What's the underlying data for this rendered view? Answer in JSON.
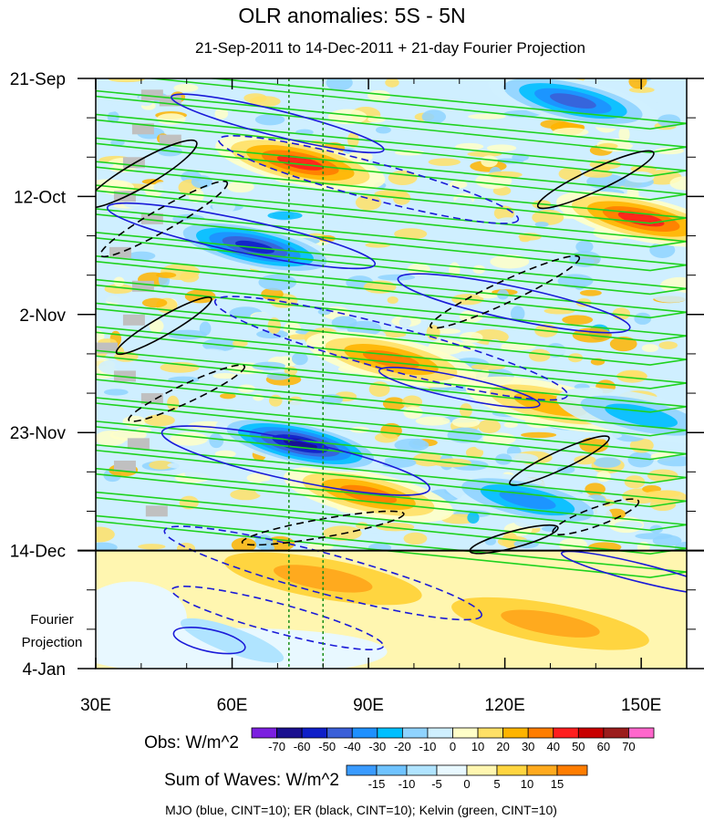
{
  "chart_data": {
    "type": "heatmap",
    "title": "OLR anomalies: 5S - 5N",
    "subtitle": "21-Sep-2011 to 14-Dec-2011 + 21-day Fourier Projection",
    "x_axis": {
      "ticks": [
        "30E",
        "60E",
        "90E",
        "120E",
        "150E"
      ],
      "tick_values": [
        30,
        60,
        90,
        120,
        150
      ],
      "range": [
        30,
        160
      ],
      "units": "degrees east longitude"
    },
    "y_axis": {
      "ticks": [
        "21-Sep",
        "12-Oct",
        "2-Nov",
        "23-Nov",
        "14-Dec",
        "4-Jan"
      ],
      "tick_days": [
        0,
        21,
        42,
        63,
        84,
        105
      ],
      "range_days": [
        0,
        105
      ],
      "direction": "time increases downward"
    },
    "projection_label": [
      "Fourier",
      "Projection"
    ],
    "observation_end_day": 84,
    "reference_longitudes": [
      72.5,
      80
    ],
    "obs_colorbar": {
      "label": "Obs: W/m^2",
      "levels": [
        -70,
        -60,
        -50,
        -40,
        -30,
        -20,
        -10,
        0,
        10,
        20,
        30,
        40,
        50,
        60,
        70
      ],
      "tick_labels": [
        "-70",
        "-60",
        "-50",
        "-40",
        "-30",
        "-20",
        "-10",
        "0",
        "10",
        "20",
        "30",
        "40",
        "50",
        "60",
        "70"
      ],
      "colors": [
        "#7b1fe0",
        "#1a0f8f",
        "#0f1fc8",
        "#3a5fd8",
        "#1e90ff",
        "#00bfff",
        "#8fd3ff",
        "#cfefff",
        "#ffffc8",
        "#ffe066",
        "#ffb400",
        "#ff7d00",
        "#ff1e1e",
        "#c80000",
        "#9b1c1c",
        "#ff66cc"
      ]
    },
    "waves_colorbar": {
      "label": "Sum of Waves: W/m^2",
      "levels": [
        -15,
        -10,
        -5,
        0,
        5,
        10,
        15
      ],
      "tick_labels": [
        "-15",
        "-10",
        "-5",
        "0",
        "5",
        "10",
        "15"
      ],
      "colors": [
        "#3a9bff",
        "#6fc3ff",
        "#b0e4ff",
        "#e8f8ff",
        "#fff6b0",
        "#ffd540",
        "#ffaa1e",
        "#ff7d00"
      ]
    },
    "legend_text": "MJO (blue, CINT=10); ER (black, CINT=10); Kelvin (green, CINT=10)",
    "contour_series": [
      {
        "name": "MJO",
        "color": "#1a1ad8",
        "contour_interval": 10
      },
      {
        "name": "ER",
        "color": "#000000",
        "contour_interval": 10
      },
      {
        "name": "Kelvin",
        "color": "#1ed21e",
        "contour_interval": 10
      }
    ],
    "anomaly_features": [
      {
        "name": "suppressed-oct-west",
        "lon": 75,
        "day": 15,
        "value": 50
      },
      {
        "name": "suppressed-oct-east",
        "lon": 150,
        "day": 25,
        "value": 50
      },
      {
        "name": "suppressed-early-nov",
        "lon": 95,
        "day": 50,
        "value": 40
      },
      {
        "name": "suppressed-nov-east",
        "lon": 130,
        "day": 58,
        "value": 30
      },
      {
        "name": "suppressed-dec",
        "lon": 90,
        "day": 74,
        "value": 40
      },
      {
        "name": "enhanced-late-oct",
        "lon": 65,
        "day": 30,
        "value": -60
      },
      {
        "name": "enhanced-late-nov",
        "lon": 75,
        "day": 65,
        "value": -70
      },
      {
        "name": "enhanced-dec-east",
        "lon": 125,
        "day": 75,
        "value": -40
      },
      {
        "name": "enhanced-sep-east",
        "lon": 135,
        "day": 4,
        "value": -50
      },
      {
        "name": "enhanced-nov-east",
        "lon": 150,
        "day": 60,
        "value": -30
      }
    ],
    "projection_features": [
      {
        "name": "projection-positive",
        "lon": 80,
        "day": 89,
        "value": 10
      },
      {
        "name": "projection-positive-east",
        "lon": 130,
        "day": 97,
        "value": 10
      },
      {
        "name": "projection-negative",
        "lon": 60,
        "day": 100,
        "value": -5
      }
    ]
  }
}
